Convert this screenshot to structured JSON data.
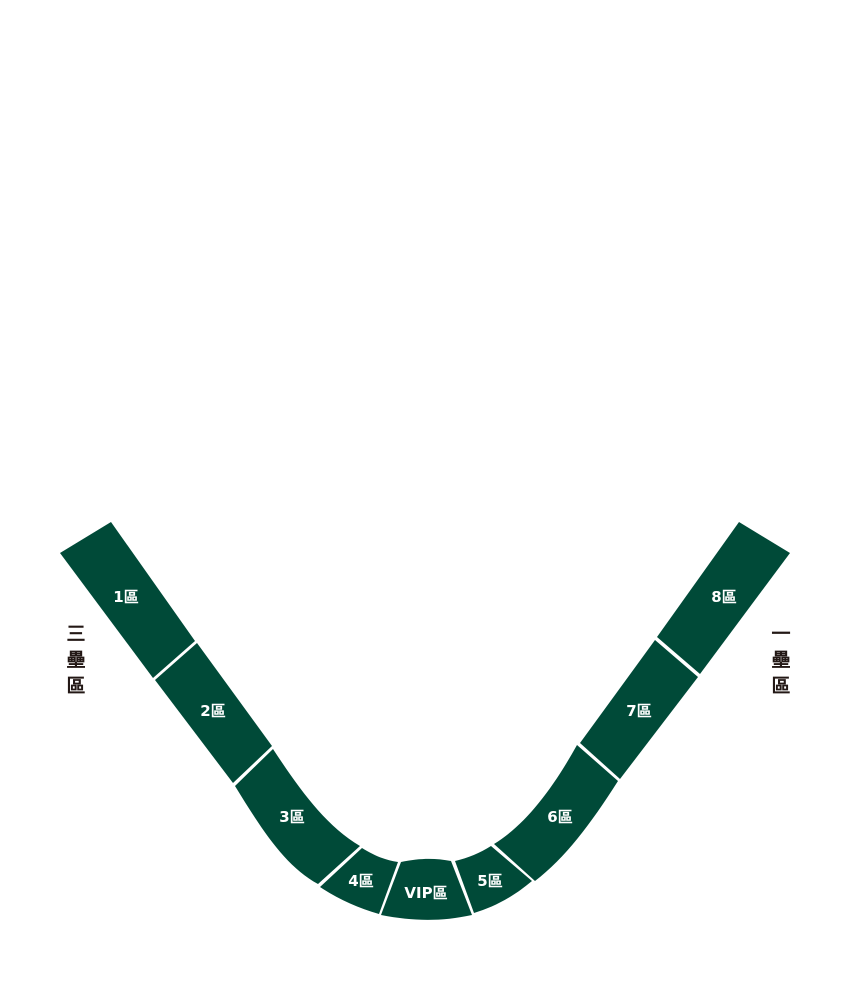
{
  "theme": {
    "section_color": "#004a38",
    "divider_color": "#ffffff",
    "side_label_color": "#231815"
  },
  "sections": {
    "s1": "1區",
    "s2": "2區",
    "s3": "3區",
    "s4": "4區",
    "vip": "VIP區",
    "s5": "5區",
    "s6": "6區",
    "s7": "7區",
    "s8": "8區"
  },
  "side_labels": {
    "third_base": [
      "三",
      "壘",
      "區"
    ],
    "first_base": [
      "一",
      "壘",
      "區"
    ]
  }
}
